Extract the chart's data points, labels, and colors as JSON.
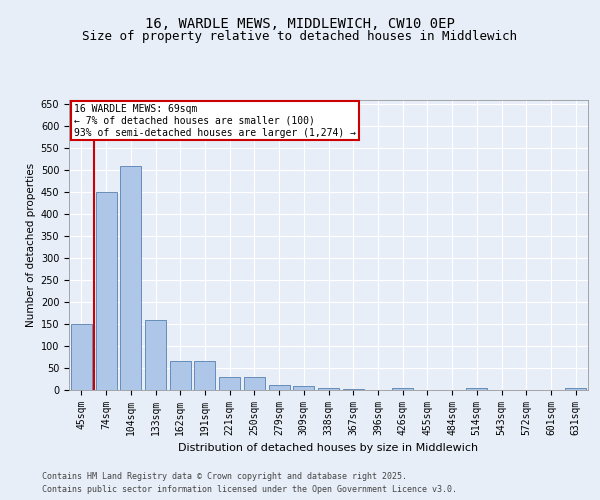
{
  "title_line1": "16, WARDLE MEWS, MIDDLEWICH, CW10 0EP",
  "title_line2": "Size of property relative to detached houses in Middlewich",
  "xlabel": "Distribution of detached houses by size in Middlewich",
  "ylabel": "Number of detached properties",
  "categories": [
    "45sqm",
    "74sqm",
    "104sqm",
    "133sqm",
    "162sqm",
    "191sqm",
    "221sqm",
    "250sqm",
    "279sqm",
    "309sqm",
    "338sqm",
    "367sqm",
    "396sqm",
    "426sqm",
    "455sqm",
    "484sqm",
    "514sqm",
    "543sqm",
    "572sqm",
    "601sqm",
    "631sqm"
  ],
  "values": [
    150,
    450,
    510,
    160,
    65,
    65,
    30,
    30,
    12,
    8,
    5,
    2,
    0,
    5,
    0,
    0,
    5,
    0,
    0,
    0,
    5
  ],
  "bar_color": "#aec6e8",
  "bar_edge_color": "#5580b0",
  "highlight_line_color": "#cc0000",
  "highlight_bar_index": 1,
  "annotation_title": "16 WARDLE MEWS: 69sqm",
  "annotation_line2": "← 7% of detached houses are smaller (100)",
  "annotation_line3": "93% of semi-detached houses are larger (1,274) →",
  "annotation_box_color": "#cc0000",
  "ylim": [
    0,
    660
  ],
  "yticks": [
    0,
    50,
    100,
    150,
    200,
    250,
    300,
    350,
    400,
    450,
    500,
    550,
    600,
    650
  ],
  "footer_line1": "Contains HM Land Registry data © Crown copyright and database right 2025.",
  "footer_line2": "Contains public sector information licensed under the Open Government Licence v3.0.",
  "bg_color": "#e8eef8",
  "plot_bg_color": "#e8eef8",
  "title_fontsize": 10,
  "subtitle_fontsize": 9,
  "tick_fontsize": 7,
  "ylabel_fontsize": 7.5,
  "xlabel_fontsize": 8,
  "footer_fontsize": 6
}
